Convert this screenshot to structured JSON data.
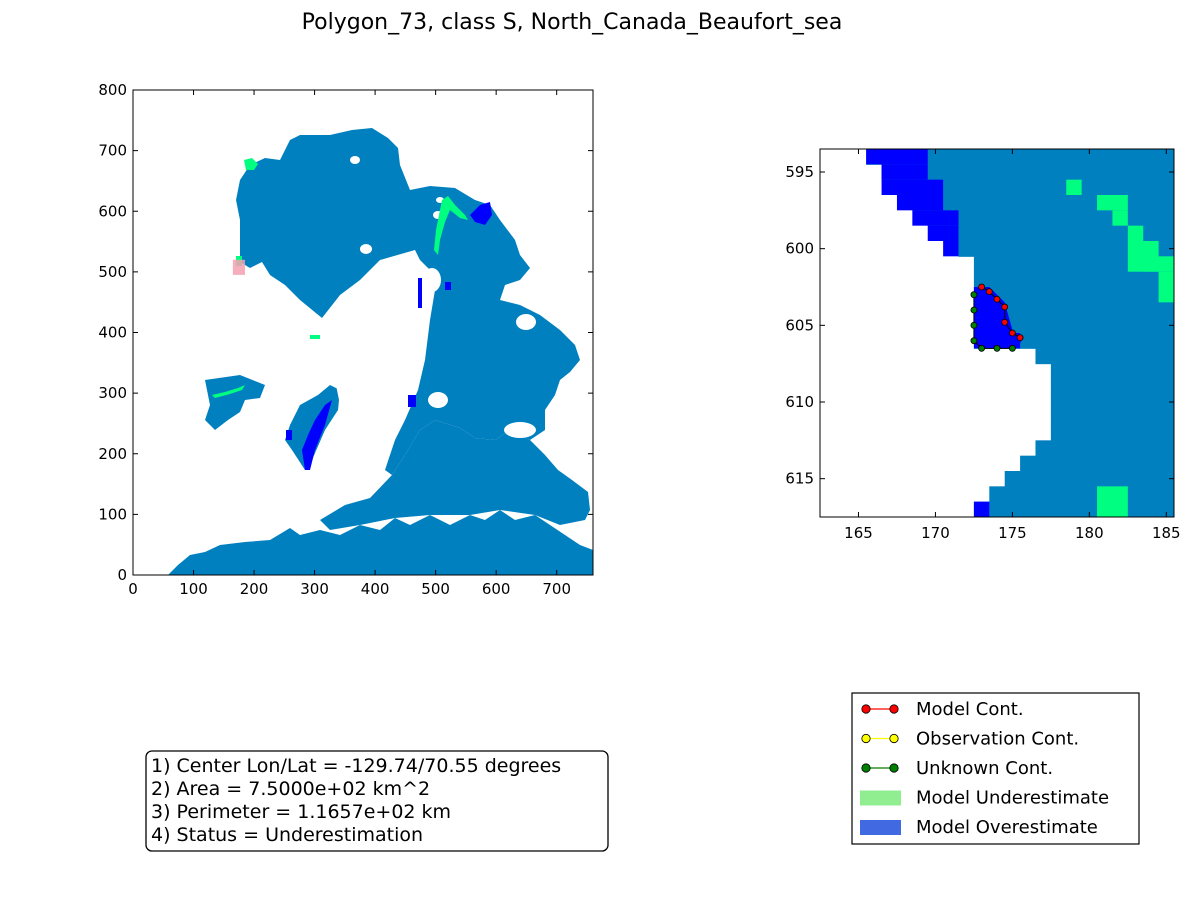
{
  "title": "Polygon_73, class S, North_Canada_Beaufort_sea",
  "colors": {
    "ocean": "#0180c0",
    "overestimate_cell": "#0000ff",
    "underestimate_cell": "#00ff80",
    "model_contour": "#ff0000",
    "observation_contour": "#ffff00",
    "unknown_contour": "#008000",
    "legend_underestimate": "#90ee90",
    "legend_overestimate": "#4169e1",
    "polygon_highlight": "#f4a0b0"
  },
  "chart_data": [
    {
      "type": "heatmap",
      "name": "overview-map",
      "title": "",
      "xlabel": "",
      "ylabel": "",
      "xlim": [
        0,
        760
      ],
      "ylim": [
        0,
        800
      ],
      "xticks": [
        "0",
        "100",
        "200",
        "300",
        "400",
        "500",
        "600",
        "700"
      ],
      "yticks": [
        "0",
        "100",
        "200",
        "300",
        "400",
        "500",
        "600",
        "700",
        "800"
      ],
      "highlight_region": {
        "x": [
          165,
          185
        ],
        "y": [
          495,
          520
        ]
      },
      "grid": false
    },
    {
      "type": "heatmap",
      "name": "zoom-map",
      "title": "",
      "xlabel": "",
      "ylabel": "",
      "xlim": [
        162.5,
        185.5
      ],
      "ylim": [
        617.5,
        593.5
      ],
      "xticks": [
        "165",
        "170",
        "175",
        "180",
        "185"
      ],
      "yticks": [
        "595",
        "600",
        "605",
        "610",
        "615"
      ],
      "grid": false,
      "model_contour": [
        [
          173,
          602.5
        ],
        [
          173.5,
          602.8
        ],
        [
          174,
          603.3
        ],
        [
          174.5,
          603.8
        ],
        [
          174.5,
          604.8
        ],
        [
          175,
          605.5
        ],
        [
          175.5,
          605.8
        ]
      ],
      "unknown_contour": [
        [
          172.5,
          603
        ],
        [
          172.5,
          604
        ],
        [
          172.5,
          605
        ],
        [
          172.5,
          606
        ],
        [
          173,
          606.5
        ],
        [
          174,
          606.5
        ],
        [
          175,
          606.5
        ]
      ],
      "observation_contour": []
    }
  ],
  "info": {
    "line1": "1) Center Lon/Lat = -129.74/70.55 degrees",
    "line2": "2) Area = 7.5000e+02 km^2",
    "line3": "3) Perimeter = 1.1657e+02 km",
    "line4": "4) Status = Underestimation"
  },
  "legend": {
    "placement": "lower-right",
    "items": [
      {
        "label": "Model Cont.",
        "kind": "line",
        "color": "#ff0000"
      },
      {
        "label": "Observation Cont.",
        "kind": "line",
        "color": "#ffff00"
      },
      {
        "label": "Unknown Cont.",
        "kind": "line",
        "color": "#008000"
      },
      {
        "label": "Model Underestimate",
        "kind": "patch",
        "color": "#90ee90"
      },
      {
        "label": "Model Overestimate",
        "kind": "patch",
        "color": "#4169e1"
      }
    ]
  }
}
